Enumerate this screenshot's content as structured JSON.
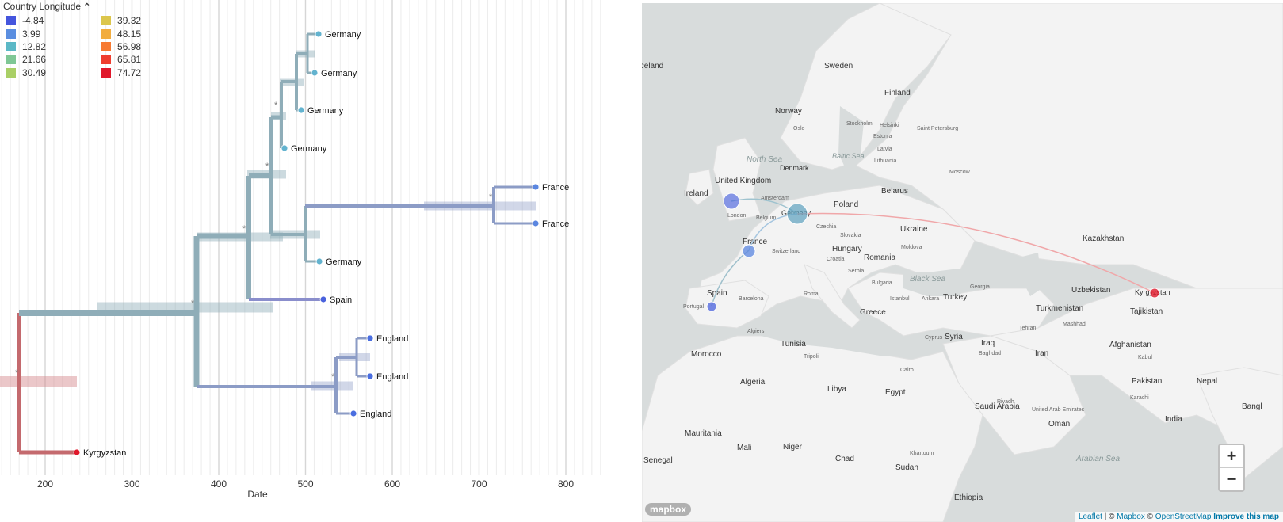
{
  "legend": {
    "title": "Country Longitude",
    "items": [
      {
        "label": "-4.84",
        "color": "#4455dd"
      },
      {
        "label": "3.99",
        "color": "#5a8ee0"
      },
      {
        "label": "12.82",
        "color": "#5bb8c6"
      },
      {
        "label": "21.66",
        "color": "#7fc795"
      },
      {
        "label": "30.49",
        "color": "#a9cf66"
      },
      {
        "label": "39.32",
        "color": "#dcc64c"
      },
      {
        "label": "48.15",
        "color": "#f2ad3f"
      },
      {
        "label": "56.98",
        "color": "#f77a32"
      },
      {
        "label": "65.81",
        "color": "#ef3d2e"
      },
      {
        "label": "74.72",
        "color": "#e0182b"
      }
    ]
  },
  "tree": {
    "x_label": "Date",
    "ticks": [
      "200",
      "300",
      "400",
      "500",
      "600",
      "700",
      "800"
    ],
    "tips": [
      {
        "label": "Germany"
      },
      {
        "label": "Germany"
      },
      {
        "label": "Germany"
      },
      {
        "label": "Germany"
      },
      {
        "label": "France"
      },
      {
        "label": "France"
      },
      {
        "label": "Germany"
      },
      {
        "label": "Spain"
      },
      {
        "label": "England"
      },
      {
        "label": "England"
      },
      {
        "label": "England"
      },
      {
        "label": "Kyrgyzstan"
      }
    ],
    "support_marker": "*"
  },
  "map": {
    "labels": [
      {
        "label": "Iceland",
        "name": "map-label-iceland"
      },
      {
        "label": "Sweden",
        "name": "map-label-sweden"
      },
      {
        "label": "Finland",
        "name": "map-label-finland"
      },
      {
        "label": "Norway",
        "name": "map-label-norway"
      },
      {
        "label": "Oslo",
        "name": "map-label-oslo"
      },
      {
        "label": "Stockholm",
        "name": "map-label-stockholm"
      },
      {
        "label": "Helsinki",
        "name": "map-label-helsinki"
      },
      {
        "label": "Saint Petersburg",
        "name": "map-label-saint-petersburg"
      },
      {
        "label": "Estonia",
        "name": "map-label-estonia"
      },
      {
        "label": "Latvia",
        "name": "map-label-latvia"
      },
      {
        "label": "Lithuania",
        "name": "map-label-lithuania"
      },
      {
        "label": "Moscow",
        "name": "map-label-moscow"
      },
      {
        "label": "North Sea",
        "name": "map-label-north-sea"
      },
      {
        "label": "Denmark",
        "name": "map-label-denmark"
      },
      {
        "label": "Baltic Sea",
        "name": "map-label-baltic-sea"
      },
      {
        "label": "United Kingdom",
        "name": "map-label-united-kingdom"
      },
      {
        "label": "Ireland",
        "name": "map-label-ireland"
      },
      {
        "label": "Amsterdam",
        "name": "map-label-amsterdam"
      },
      {
        "label": "London",
        "name": "map-label-london"
      },
      {
        "label": "Belgium",
        "name": "map-label-belgium"
      },
      {
        "label": "Germany",
        "name": "map-label-germany"
      },
      {
        "label": "Poland",
        "name": "map-label-poland"
      },
      {
        "label": "Belarus",
        "name": "map-label-belarus"
      },
      {
        "label": "Ukraine",
        "name": "map-label-ukraine"
      },
      {
        "label": "Kazakhstan",
        "name": "map-label-kazakhstan"
      },
      {
        "label": "Czechia",
        "name": "map-label-czechia"
      },
      {
        "label": "Slovakia",
        "name": "map-label-slovakia"
      },
      {
        "label": "Moldova",
        "name": "map-label-moldova"
      },
      {
        "label": "France",
        "name": "map-label-france"
      },
      {
        "label": "Switzerland",
        "name": "map-label-switzerland"
      },
      {
        "label": "Hungary",
        "name": "map-label-hungary"
      },
      {
        "label": "Romania",
        "name": "map-label-romania"
      },
      {
        "label": "Croatia",
        "name": "map-label-croatia"
      },
      {
        "label": "Serbia",
        "name": "map-label-serbia"
      },
      {
        "label": "Black Sea",
        "name": "map-label-black-sea"
      },
      {
        "label": "Bulgaria",
        "name": "map-label-bulgaria"
      },
      {
        "label": "Uzbekistan",
        "name": "map-label-uzbekistan"
      },
      {
        "label": "Kyrgyzstan",
        "name": "map-label-kyrgyzstan"
      },
      {
        "label": "Spain",
        "name": "map-label-spain"
      },
      {
        "label": "Portugal",
        "name": "map-label-portugal"
      },
      {
        "label": "Barcelona",
        "name": "map-label-barcelona"
      },
      {
        "label": "Roma",
        "name": "map-label-roma"
      },
      {
        "label": "Istanbul",
        "name": "map-label-istanbul"
      },
      {
        "label": "Ankara",
        "name": "map-label-ankara"
      },
      {
        "label": "Turkey",
        "name": "map-label-turkey"
      },
      {
        "label": "Georgia",
        "name": "map-label-georgia"
      },
      {
        "label": "Turkmenistan",
        "name": "map-label-turkmenistan"
      },
      {
        "label": "Tajikistan",
        "name": "map-label-tajikistan"
      },
      {
        "label": "Greece",
        "name": "map-label-greece"
      },
      {
        "label": "Tehran",
        "name": "map-label-tehran"
      },
      {
        "label": "Mashhad",
        "name": "map-label-mashhad"
      },
      {
        "label": "Algiers",
        "name": "map-label-algiers"
      },
      {
        "label": "Tunisia",
        "name": "map-label-tunisia"
      },
      {
        "label": "Cyprus",
        "name": "map-label-cyprus"
      },
      {
        "label": "Syria",
        "name": "map-label-syria"
      },
      {
        "label": "Iraq",
        "name": "map-label-iraq"
      },
      {
        "label": "Iran",
        "name": "map-label-iran"
      },
      {
        "label": "Afghanistan",
        "name": "map-label-afghanistan"
      },
      {
        "label": "Kabul",
        "name": "map-label-kabul"
      },
      {
        "label": "Morocco",
        "name": "map-label-morocco"
      },
      {
        "label": "Tripoli",
        "name": "map-label-tripoli"
      },
      {
        "label": "Baghdad",
        "name": "map-label-baghdad"
      },
      {
        "label": "Pakistan",
        "name": "map-label-pakistan"
      },
      {
        "label": "Nepal",
        "name": "map-label-nepal"
      },
      {
        "label": "Algeria",
        "name": "map-label-algeria"
      },
      {
        "label": "Libya",
        "name": "map-label-libya"
      },
      {
        "label": "Egypt",
        "name": "map-label-egypt"
      },
      {
        "label": "Cairo",
        "name": "map-label-cairo"
      },
      {
        "label": "Riyadh",
        "name": "map-label-riyadh"
      },
      {
        "label": "Karachi",
        "name": "map-label-karachi"
      },
      {
        "label": "Saudi Arabia",
        "name": "map-label-saudi-arabia"
      },
      {
        "label": "United Arab Emirates",
        "name": "map-label-uae"
      },
      {
        "label": "India",
        "name": "map-label-india"
      },
      {
        "label": "Oman",
        "name": "map-label-oman"
      },
      {
        "label": "Bangl",
        "name": "map-label-bangladesh"
      },
      {
        "label": "Mauritania",
        "name": "map-label-mauritania"
      },
      {
        "label": "Mali",
        "name": "map-label-mali"
      },
      {
        "label": "Niger",
        "name": "map-label-niger"
      },
      {
        "label": "Chad",
        "name": "map-label-chad"
      },
      {
        "label": "Sudan",
        "name": "map-label-sudan"
      },
      {
        "label": "Khartoum",
        "name": "map-label-khartoum"
      },
      {
        "label": "Arabian Sea",
        "name": "map-label-arabian-sea"
      },
      {
        "label": "Senegal",
        "name": "map-label-senegal"
      },
      {
        "label": "Ethiopia",
        "name": "map-label-ethiopia"
      }
    ],
    "zoom_in": "+",
    "zoom_out": "−",
    "attribution": {
      "leaflet": "Leaflet",
      "sep1": " | © ",
      "mapbox": "Mapbox",
      "sep2": " © ",
      "osm": "OpenStreetMap",
      "improve": "Improve this map"
    },
    "logo": "mapbox"
  }
}
